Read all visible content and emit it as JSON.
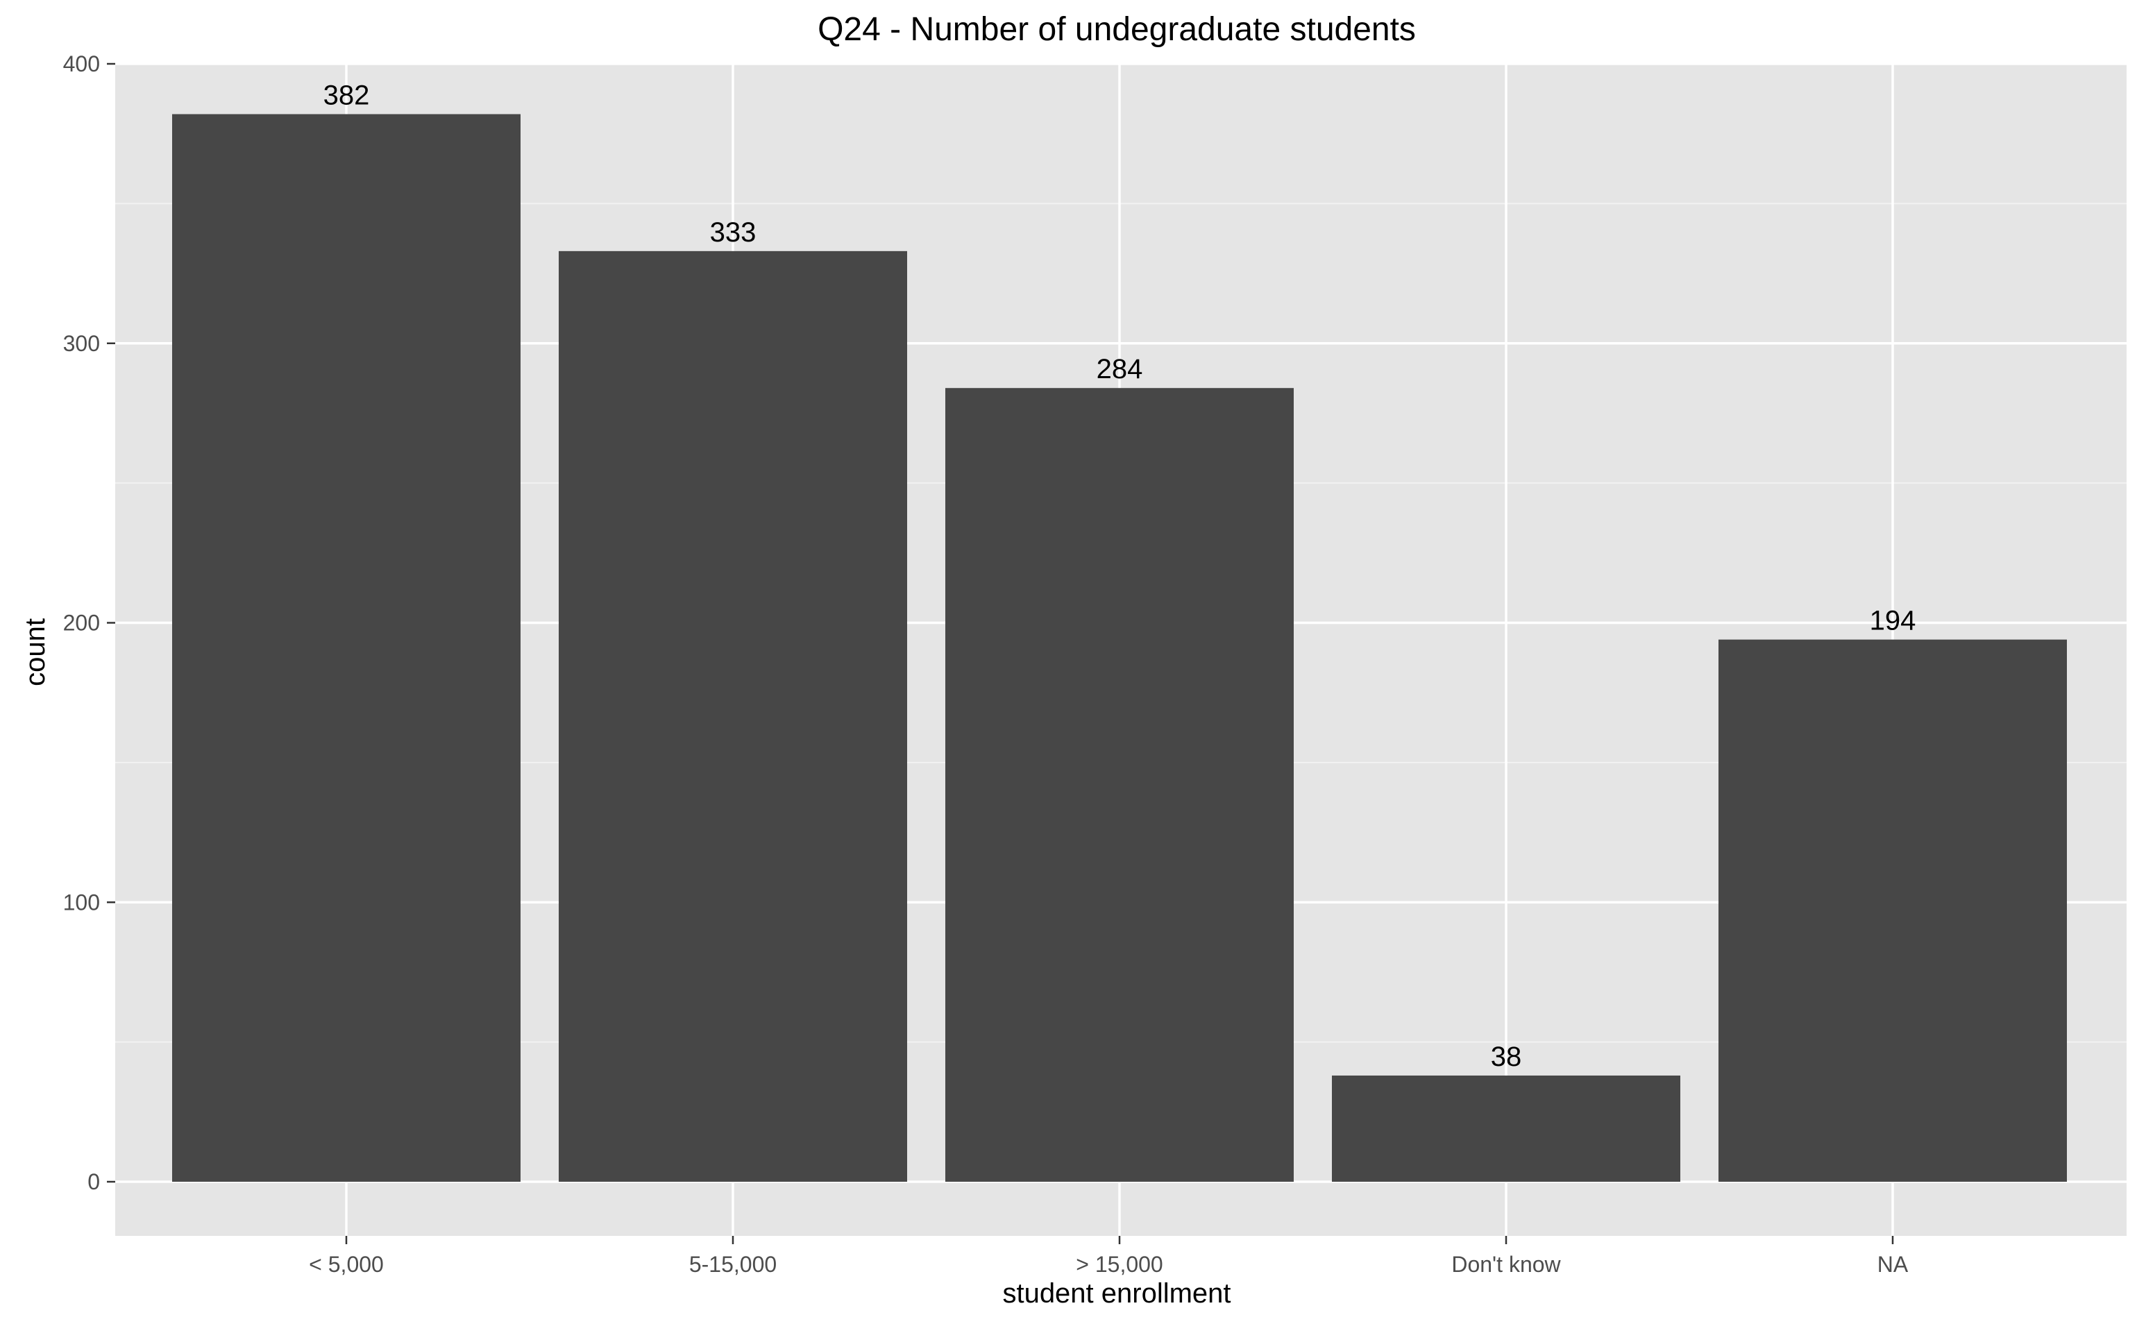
{
  "chart_data": {
    "type": "bar",
    "title": "Q24 - Number of undegraduate students",
    "xlabel": "student enrollment",
    "ylabel": "count",
    "categories": [
      "< 5,000",
      "5-15,000",
      "> 15,000",
      "Don't know",
      "NA"
    ],
    "values": [
      382,
      333,
      284,
      38,
      194
    ],
    "data_labels": [
      "382",
      "333",
      "284",
      "38",
      "194"
    ],
    "ylim": [
      -19,
      400
    ],
    "y_ticks": [
      0,
      100,
      200,
      300,
      400
    ],
    "grid": true,
    "legend": "none",
    "colors": {
      "bar": "#474747",
      "panel_background": "#e5e5e5",
      "grid_major": "#ffffff",
      "grid_minor": "#f2f2f2",
      "tick_text": "#4d4d4d",
      "axis_tick": "#333333"
    }
  }
}
